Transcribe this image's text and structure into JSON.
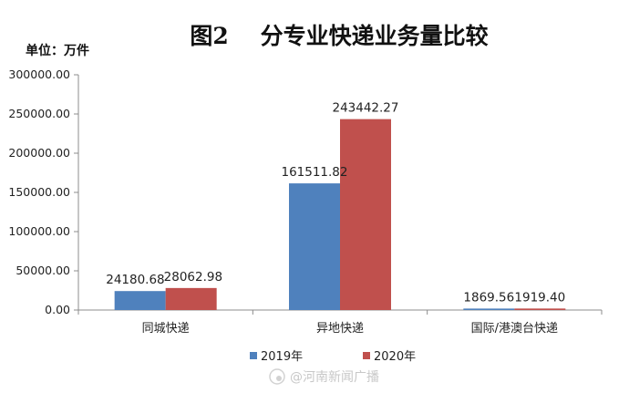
{
  "chart_data": {
    "type": "bar",
    "title": "图2    分专业快递业务量比较",
    "unit_label": "单位：万件",
    "categories": [
      "同城快递",
      "异地快递",
      "国际/港澳台快递"
    ],
    "series": [
      {
        "name": "2019年",
        "color": "#4f81bd",
        "values": [
          24180.68,
          161511.82,
          1869.56
        ]
      },
      {
        "name": "2020年",
        "color": "#c0504d",
        "values": [
          28062.98,
          243442.27,
          1919.4
        ]
      }
    ],
    "data_labels": [
      [
        "24180.68",
        "161511.82",
        "1869.56"
      ],
      [
        "28062.98",
        "243442.27",
        "1919.40"
      ]
    ],
    "ylim": [
      0,
      300000
    ],
    "y_ticks": [
      "0.00",
      "50000.00",
      "100000.00",
      "150000.00",
      "200000.00",
      "250000.00",
      "300000.00"
    ],
    "grid": false,
    "legend_position": "bottom"
  },
  "watermark": "@河南新闻广播"
}
